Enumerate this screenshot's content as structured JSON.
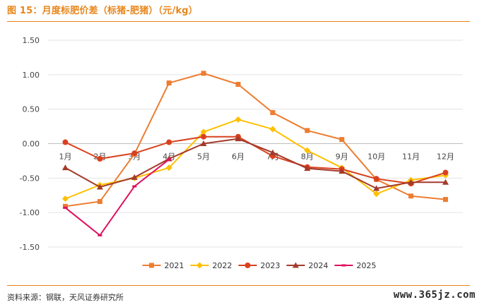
{
  "header": {
    "title": "图 15：月度标肥价差（标猪-肥猪）（元/kg）"
  },
  "footer": {
    "source": "资料来源：钢联，天风证券研究所",
    "watermark": "www.365jz.com"
  },
  "chart_data": {
    "type": "line",
    "title": "图 15：月度标肥价差（标猪-肥猪）（元/kg）",
    "categories": [
      "1月",
      "2月",
      "3月",
      "4月",
      "5月",
      "6月",
      "7月",
      "8月",
      "9月",
      "10月",
      "11月",
      "12月"
    ],
    "yticks": [
      "1.50",
      "1.00",
      "0.50",
      "0.00",
      "-0.50",
      "-1.00",
      "-1.50"
    ],
    "ylim": [
      -1.5,
      1.5
    ],
    "grid": true,
    "legend_position": "bottom",
    "series": [
      {
        "name": "2021",
        "color": "#ed7d31",
        "marker": "square",
        "values": [
          -0.91,
          -0.84,
          -0.15,
          0.88,
          1.02,
          0.86,
          0.45,
          0.19,
          0.06,
          -0.52,
          -0.76,
          -0.81
        ]
      },
      {
        "name": "2022",
        "color": "#ffc000",
        "marker": "diamond",
        "values": [
          -0.8,
          -0.6,
          -0.5,
          -0.35,
          0.17,
          0.35,
          0.21,
          -0.1,
          -0.35,
          -0.73,
          -0.53,
          -0.46
        ]
      },
      {
        "name": "2023",
        "color": "#d9411e",
        "marker": "circle",
        "values": [
          0.02,
          -0.22,
          -0.14,
          0.02,
          0.1,
          0.1,
          -0.18,
          -0.34,
          -0.37,
          -0.51,
          -0.58,
          -0.42
        ]
      },
      {
        "name": "2024",
        "color": "#a33a2a",
        "marker": "triangle",
        "values": [
          -0.35,
          -0.63,
          -0.49,
          -0.22,
          0.0,
          0.07,
          -0.13,
          -0.36,
          -0.4,
          -0.65,
          -0.56,
          -0.56
        ]
      },
      {
        "name": "2025",
        "color": "#e0105f",
        "marker": "dash",
        "values": [
          -0.93,
          -1.33,
          -0.62,
          -0.23,
          null,
          null,
          null,
          null,
          null,
          null,
          null,
          null
        ]
      }
    ]
  }
}
